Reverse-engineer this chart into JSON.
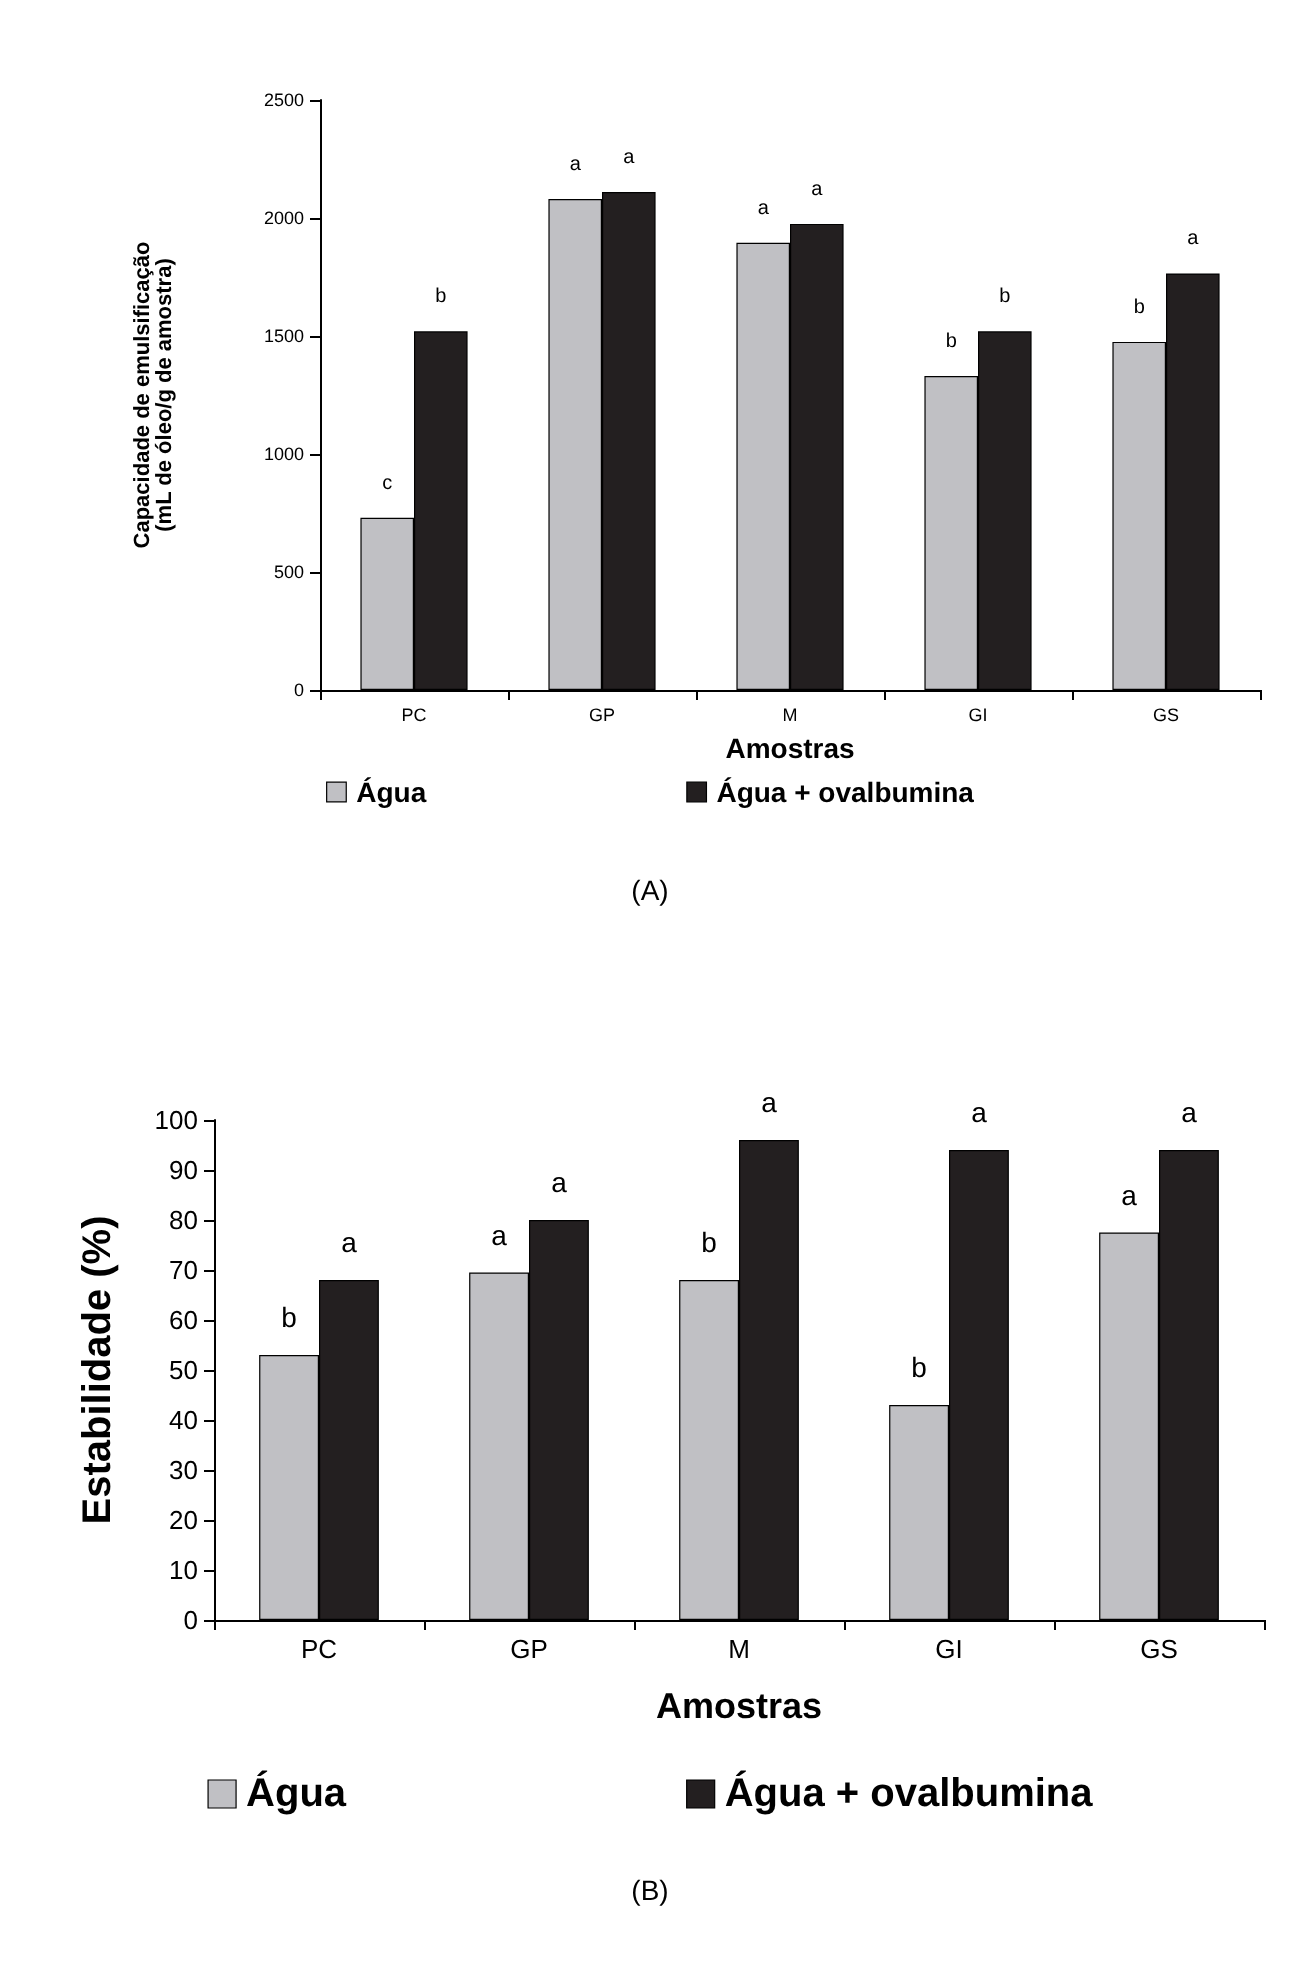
{
  "chart_data": [
    {
      "type": "bar",
      "ylabel": "Capacidade de emulsificação\n(mL de óleo/g de amostra)",
      "xlabel": "Amostras",
      "categories": [
        "PC",
        "GP",
        "M",
        "GI",
        "GS"
      ],
      "ylim": [
        0,
        2500
      ],
      "yticks": [
        0,
        500,
        1000,
        1500,
        2000,
        2500
      ],
      "grid": false,
      "legend": "bottom",
      "annotations": [
        "(A)"
      ],
      "series": [
        {
          "name": "Água",
          "color": "#c0c0c4",
          "values": [
            730,
            2080,
            1895,
            1330,
            1475
          ],
          "value_labels": [
            "c",
            "a",
            "a",
            "b",
            "b"
          ]
        },
        {
          "name": "Água + ovalbumina",
          "color": "#231f20",
          "values": [
            1520,
            2110,
            1975,
            1520,
            1765
          ],
          "value_labels": [
            "b",
            "a",
            "a",
            "b",
            "a"
          ]
        }
      ]
    },
    {
      "type": "bar",
      "ylabel": "Estabilidade (%)",
      "xlabel": "Amostras",
      "categories": [
        "PC",
        "GP",
        "M",
        "GI",
        "GS"
      ],
      "ylim": [
        0,
        100
      ],
      "yticks": [
        0,
        10,
        20,
        30,
        40,
        50,
        60,
        70,
        80,
        90,
        100
      ],
      "grid": false,
      "legend": "bottom",
      "annotations": [
        "(B)"
      ],
      "series": [
        {
          "name": "Água",
          "color": "#c0c0c4",
          "values": [
            53,
            69.5,
            68,
            43,
            77.5
          ],
          "value_labels": [
            "b",
            "a",
            "b",
            "b",
            "a"
          ]
        },
        {
          "name": "Água + ovalbumina",
          "color": "#231f20",
          "values": [
            68,
            80,
            96,
            94,
            94
          ],
          "value_labels": [
            "a",
            "a",
            "a",
            "a",
            "a"
          ]
        }
      ]
    }
  ]
}
